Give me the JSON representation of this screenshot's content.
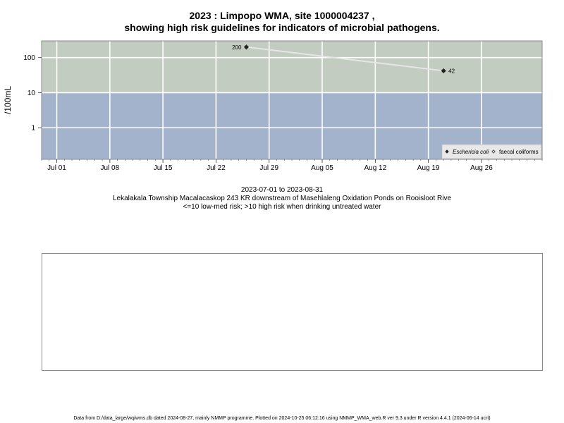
{
  "title_line1": "2023 : Limpopo WMA, site 1000004237 ,",
  "title_line2": "showing high risk guidelines for indicators of microbial pathogens.",
  "date_range": "2023-07-01 to 2023-08-31",
  "site_description": "Lekalakala Township Macalacaskop 243 KR downstream of Masehlaleng Oxidation Ponds on Rooisloot Rive",
  "risk_note": "<=10 low-med risk; >10 high risk when drinking untreated water",
  "footer": "Data from D:/data_large/wq/wms.db dated 2024-08-27, mainly NMMP programme. Plotted on 2024-10-25 06:12:16 using NMMP_WMA_web.R ver 9.3 under R version 4.4.1 (2024-06-14 ucrt)",
  "chart_data": {
    "type": "line",
    "ylabel": "/100mL",
    "y_scale": "log10",
    "ylim": [
      0.125,
      300
    ],
    "xlim": [
      "2023-06-29",
      "2023-09-03"
    ],
    "threshold": 10,
    "colors": {
      "high_risk_band": "#c3ccc0",
      "low_risk_band": "#a3b3cc",
      "series_line": "#e6e6e6",
      "grid": "#ffffff"
    },
    "x_ticks": [
      {
        "date": "2023-07-01",
        "label": "Jul 01"
      },
      {
        "date": "2023-07-08",
        "label": "Jul 08"
      },
      {
        "date": "2023-07-15",
        "label": "Jul 15"
      },
      {
        "date": "2023-07-22",
        "label": "Jul 22"
      },
      {
        "date": "2023-07-29",
        "label": "Jul 29"
      },
      {
        "date": "2023-08-05",
        "label": "Aug 05"
      },
      {
        "date": "2023-08-12",
        "label": "Aug 12"
      },
      {
        "date": "2023-08-19",
        "label": "Aug 19"
      },
      {
        "date": "2023-08-26",
        "label": "Aug 26"
      }
    ],
    "y_ticks": [
      {
        "value": 1,
        "label": "1"
      },
      {
        "value": 10,
        "label": "10"
      },
      {
        "value": 100,
        "label": "100"
      }
    ],
    "series": [
      {
        "name": "Eschericia coli",
        "marker": "filled-diamond",
        "points": [
          {
            "x": "2023-07-26",
            "y": 200,
            "label": "200"
          },
          {
            "x": "2023-08-21",
            "y": 42,
            "label": "42"
          }
        ]
      },
      {
        "name": "faecal coliforms",
        "marker": "open-diamond",
        "points": []
      }
    ],
    "legend_position": "bottom-right"
  }
}
